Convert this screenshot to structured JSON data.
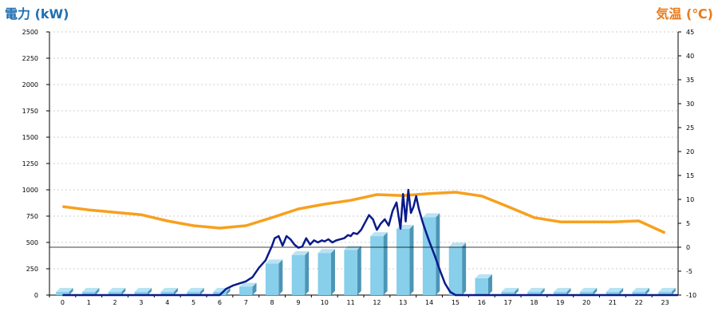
{
  "chart_data": {
    "type": "bar+line",
    "title_left": "電力 (kW)",
    "title_right": "気温 (℃)",
    "categories": [
      "0",
      "1",
      "2",
      "3",
      "4",
      "5",
      "6",
      "7",
      "8",
      "9",
      "10",
      "11",
      "12",
      "13",
      "14",
      "15",
      "16",
      "17",
      "18",
      "19",
      "20",
      "21",
      "22",
      "23"
    ],
    "ylim_left": [
      0,
      2500
    ],
    "ylim_right": [
      -10,
      45
    ],
    "yticks_left": [
      "0",
      "250",
      "500",
      "750",
      "1000",
      "1250",
      "1500",
      "1750",
      "2000",
      "2250",
      "2500"
    ],
    "yticks_right": [
      "-10",
      "-5",
      "0",
      "5",
      "10",
      "15",
      "20",
      "25",
      "30",
      "35",
      "40",
      "45"
    ],
    "grid": "dashed-horizontal",
    "bar_series": {
      "values": [
        0,
        0,
        0,
        0,
        0,
        0,
        0,
        80,
        300,
        380,
        400,
        430,
        560,
        630,
        740,
        460,
        160,
        0,
        0,
        0,
        0,
        0,
        0,
        0
      ],
      "color": "#87cfea"
    },
    "power_line": {
      "color": "#0a1a8c",
      "x": [
        0,
        0.5,
        1,
        1.5,
        2,
        2.5,
        3,
        3.5,
        4,
        4.5,
        5,
        5.5,
        6,
        6.25,
        6.5,
        6.75,
        7,
        7.25,
        7.5,
        7.75,
        8,
        8.1,
        8.25,
        8.4,
        8.55,
        8.7,
        8.85,
        9,
        9.15,
        9.3,
        9.45,
        9.6,
        9.75,
        9.9,
        10,
        10.15,
        10.3,
        10.45,
        10.6,
        10.75,
        10.9,
        11,
        11.1,
        11.25,
        11.4,
        11.55,
        11.7,
        11.85,
        12,
        12.15,
        12.3,
        12.45,
        12.6,
        12.75,
        12.9,
        13,
        13.1,
        13.2,
        13.3,
        13.4,
        13.5,
        13.6,
        13.75,
        13.9,
        14,
        14.2,
        14.4,
        14.6,
        14.8,
        15,
        15.25,
        15.5,
        15.75,
        16,
        16.25,
        16.5,
        16.75,
        17,
        17.5,
        18,
        19,
        20,
        21,
        22,
        23,
        23.5
      ],
      "y": [
        0,
        0,
        0,
        0,
        0,
        0,
        0,
        0,
        0,
        0,
        0,
        0,
        0,
        60,
        90,
        110,
        130,
        170,
        260,
        330,
        470,
        540,
        560,
        470,
        560,
        530,
        480,
        450,
        460,
        540,
        480,
        520,
        500,
        520,
        510,
        530,
        500,
        520,
        530,
        540,
        570,
        560,
        590,
        580,
        620,
        690,
        760,
        720,
        620,
        680,
        720,
        660,
        800,
        880,
        630,
        960,
        700,
        1000,
        780,
        840,
        940,
        820,
        690,
        580,
        510,
        380,
        240,
        110,
        30,
        0,
        0,
        0,
        0,
        0,
        0,
        0,
        0,
        0,
        0,
        0,
        0,
        0,
        0,
        0,
        0,
        0
      ]
    },
    "temperature_line": {
      "color": "#f7a01e",
      "x": [
        0,
        1,
        2,
        3,
        4,
        5,
        6,
        7,
        8,
        9,
        10,
        11,
        12,
        13,
        14,
        15,
        16,
        17,
        18,
        19,
        20,
        21,
        22,
        23
      ],
      "y": [
        8.5,
        7.8,
        7.3,
        6.8,
        5.5,
        4.5,
        4.0,
        4.5,
        6.2,
        8.0,
        9.0,
        9.8,
        11.0,
        10.8,
        11.2,
        11.5,
        10.7,
        8.5,
        6.2,
        5.3,
        5.3,
        5.3,
        5.5,
        3.0
      ]
    },
    "reference_line_right_value": 0
  }
}
